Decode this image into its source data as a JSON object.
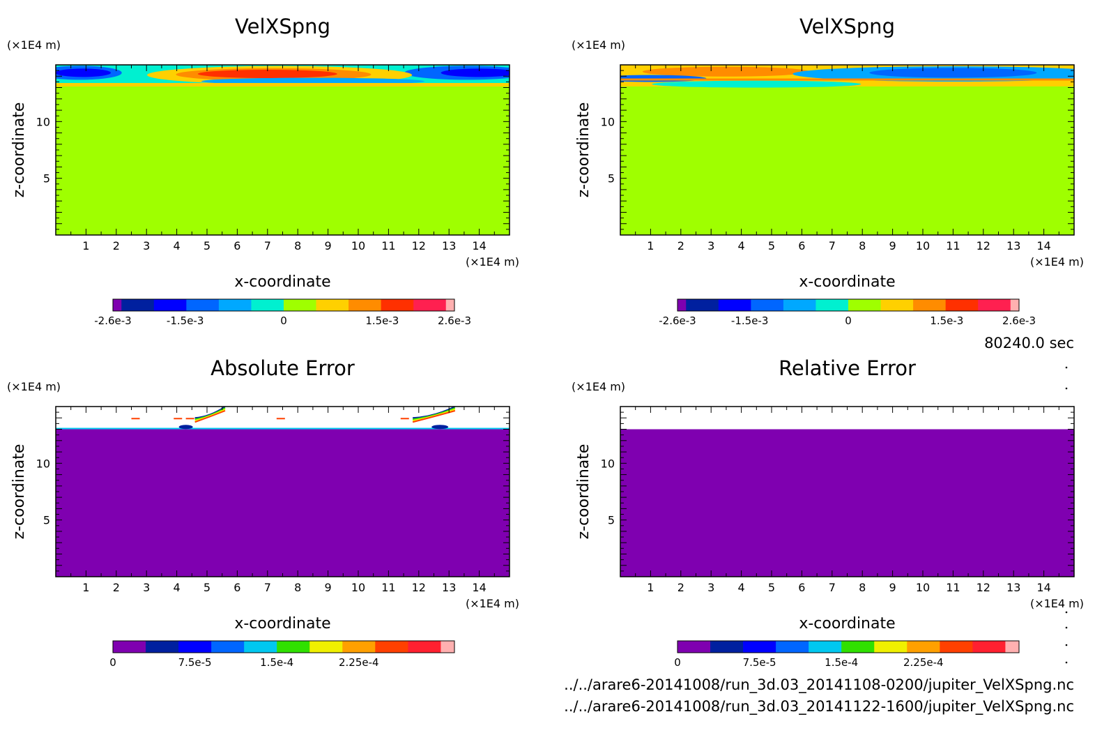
{
  "palettes": {
    "velocity": [
      "#7f00b0",
      "#00209f",
      "#0000ff",
      "#0066ff",
      "#00a8ff",
      "#00f0d0",
      "#9fff00",
      "#ffd000",
      "#ff8c00",
      "#ff3000",
      "#ff2050",
      "#ffb0b0"
    ],
    "error": [
      "#7f00b0",
      "#00209f",
      "#0000ff",
      "#0066ff",
      "#00c8f0",
      "#30e000",
      "#f0f000",
      "#ffa000",
      "#ff4000",
      "#ff2030",
      "#ffb0b0"
    ]
  },
  "time_label": "80240.0 sec",
  "files": [
    "../../arare6-20141008/run_3d.03_20141108-0200/jupiter_VelXSpng.nc",
    "../../arare6-20141008/run_3d.03_20141122-1600/jupiter_VelXSpng.nc"
  ],
  "chart_data": [
    {
      "type": "heatmap",
      "title": "VelXSpng",
      "xlabel": "x-coordinate",
      "ylabel": "z-coordinate",
      "x_unit": "(×1E4 m)",
      "y_unit": "(×1E4 m)",
      "x_ticks": [
        "1",
        "2",
        "3",
        "4",
        "5",
        "6",
        "7",
        "8",
        "9",
        "10",
        "11",
        "12",
        "13",
        "14"
      ],
      "y_ticks": [
        "5",
        "10"
      ],
      "xlim": [
        0,
        15
      ],
      "ylim": [
        0,
        15
      ],
      "colorbar_ticks": [
        "-2.6e-3",
        "-1.5e-3",
        "0",
        "1.5e-3",
        "2.6e-3"
      ],
      "colorbar_range": [
        -0.0026,
        0.0026
      ],
      "background_value": 0
    },
    {
      "type": "heatmap",
      "title": "VelXSpng",
      "xlabel": "x-coordinate",
      "ylabel": "z-coordinate",
      "x_unit": "(×1E4 m)",
      "y_unit": "(×1E4 m)",
      "x_ticks": [
        "1",
        "2",
        "3",
        "4",
        "5",
        "6",
        "7",
        "8",
        "9",
        "10",
        "11",
        "12",
        "13",
        "14"
      ],
      "y_ticks": [
        "5",
        "10"
      ],
      "xlim": [
        0,
        15
      ],
      "ylim": [
        0,
        15
      ],
      "colorbar_ticks": [
        "-2.6e-3",
        "-1.5e-3",
        "0",
        "1.5e-3",
        "2.6e-3"
      ],
      "colorbar_range": [
        -0.0026,
        0.0026
      ],
      "background_value": 0
    },
    {
      "type": "heatmap",
      "title": "Absolute Error",
      "xlabel": "x-coordinate",
      "ylabel": "z-coordinate",
      "x_unit": "(×1E4 m)",
      "y_unit": "(×1E4 m)",
      "x_ticks": [
        "1",
        "2",
        "3",
        "4",
        "5",
        "6",
        "7",
        "8",
        "9",
        "10",
        "11",
        "12",
        "13",
        "14"
      ],
      "y_ticks": [
        "5",
        "10"
      ],
      "xlim": [
        0,
        15
      ],
      "ylim": [
        0,
        15
      ],
      "colorbar_ticks": [
        "0",
        "7.5e-5",
        "1.5e-4",
        "2.25e-4"
      ],
      "colorbar_range": [
        0,
        0.0003
      ],
      "background_value": 0,
      "undefined_above_z": 13.0
    },
    {
      "type": "heatmap",
      "title": "Relative Error",
      "xlabel": "x-coordinate",
      "ylabel": "z-coordinate",
      "x_unit": "(×1E4 m)",
      "y_unit": "(×1E4 m)",
      "x_ticks": [
        "1",
        "2",
        "3",
        "4",
        "5",
        "6",
        "7",
        "8",
        "9",
        "10",
        "11",
        "12",
        "13",
        "14"
      ],
      "y_ticks": [
        "5",
        "10"
      ],
      "xlim": [
        0,
        15
      ],
      "ylim": [
        0,
        15
      ],
      "colorbar_ticks": [
        "0",
        "7.5e-5",
        "1.5e-4",
        "2.25e-4"
      ],
      "colorbar_range": [
        0,
        0.0003
      ],
      "background_value": 0,
      "undefined_above_z": 13.0
    }
  ]
}
